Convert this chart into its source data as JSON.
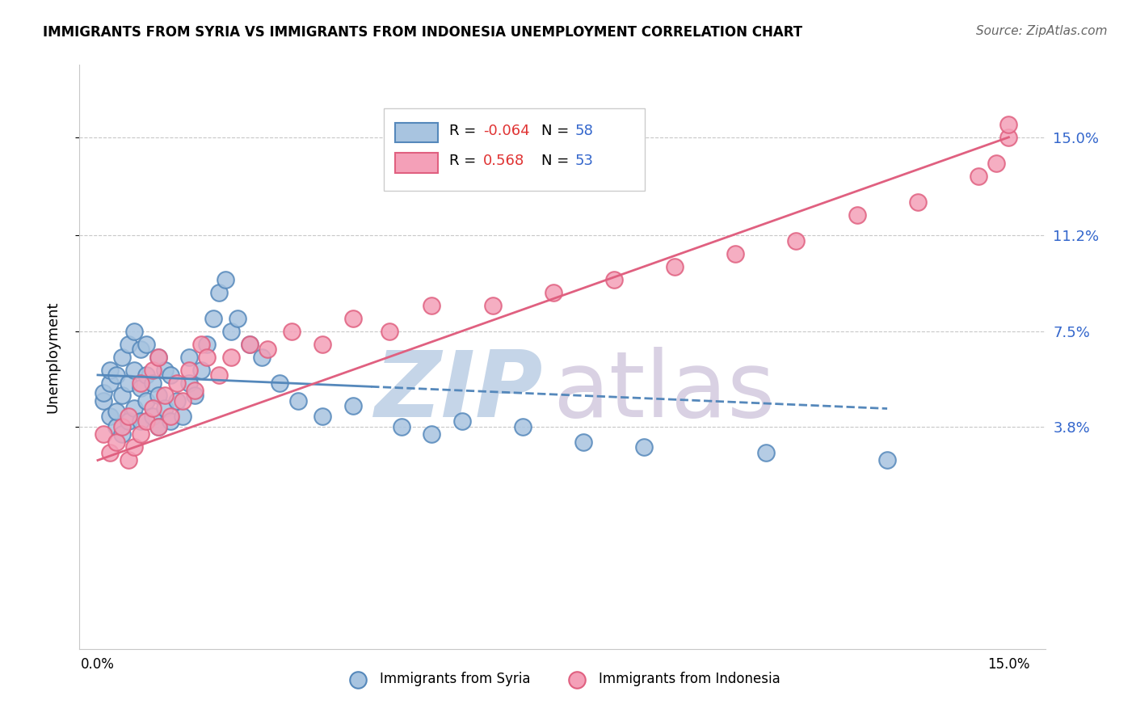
{
  "title": "IMMIGRANTS FROM SYRIA VS IMMIGRANTS FROM INDONESIA UNEMPLOYMENT CORRELATION CHART",
  "source": "Source: ZipAtlas.com",
  "ylabel": "Unemployment",
  "color_syria": "#a8c4e0",
  "color_indonesia": "#f4a0b8",
  "line_color_syria": "#5588bb",
  "line_color_indonesia": "#e06080",
  "ytick_values": [
    0.038,
    0.075,
    0.112,
    0.15
  ],
  "ytick_labels": [
    "3.8%",
    "7.5%",
    "11.2%",
    "15.0%"
  ],
  "xlim": [
    -0.003,
    0.156
  ],
  "ylim": [
    -0.048,
    0.178
  ],
  "grid_color": "#c8c8c8",
  "syria_x": [
    0.001,
    0.001,
    0.002,
    0.002,
    0.002,
    0.003,
    0.003,
    0.003,
    0.004,
    0.004,
    0.004,
    0.005,
    0.005,
    0.005,
    0.006,
    0.006,
    0.006,
    0.007,
    0.007,
    0.007,
    0.008,
    0.008,
    0.008,
    0.009,
    0.009,
    0.01,
    0.01,
    0.01,
    0.011,
    0.011,
    0.012,
    0.012,
    0.013,
    0.014,
    0.015,
    0.015,
    0.016,
    0.017,
    0.018,
    0.019,
    0.02,
    0.021,
    0.022,
    0.023,
    0.025,
    0.027,
    0.03,
    0.033,
    0.037,
    0.042,
    0.05,
    0.055,
    0.06,
    0.07,
    0.08,
    0.09,
    0.11,
    0.13
  ],
  "syria_y": [
    0.048,
    0.051,
    0.042,
    0.055,
    0.06,
    0.038,
    0.044,
    0.058,
    0.035,
    0.05,
    0.065,
    0.04,
    0.055,
    0.07,
    0.045,
    0.06,
    0.075,
    0.04,
    0.053,
    0.068,
    0.048,
    0.058,
    0.07,
    0.042,
    0.055,
    0.038,
    0.05,
    0.065,
    0.045,
    0.06,
    0.04,
    0.058,
    0.048,
    0.042,
    0.055,
    0.065,
    0.05,
    0.06,
    0.07,
    0.08,
    0.09,
    0.095,
    0.075,
    0.08,
    0.07,
    0.065,
    0.055,
    0.048,
    0.042,
    0.046,
    0.038,
    0.035,
    0.04,
    0.038,
    0.032,
    0.03,
    0.028,
    0.025
  ],
  "indonesia_x": [
    0.001,
    0.002,
    0.003,
    0.004,
    0.005,
    0.005,
    0.006,
    0.007,
    0.007,
    0.008,
    0.009,
    0.009,
    0.01,
    0.01,
    0.011,
    0.012,
    0.013,
    0.014,
    0.015,
    0.016,
    0.017,
    0.018,
    0.02,
    0.022,
    0.025,
    0.028,
    0.032,
    0.037,
    0.042,
    0.048,
    0.055,
    0.065,
    0.075,
    0.085,
    0.095,
    0.105,
    0.115,
    0.125,
    0.135,
    0.145,
    0.148,
    0.15,
    0.15
  ],
  "indonesia_y": [
    0.035,
    0.028,
    0.032,
    0.038,
    0.025,
    0.042,
    0.03,
    0.035,
    0.055,
    0.04,
    0.045,
    0.06,
    0.038,
    0.065,
    0.05,
    0.042,
    0.055,
    0.048,
    0.06,
    0.052,
    0.07,
    0.065,
    0.058,
    0.065,
    0.07,
    0.068,
    0.075,
    0.07,
    0.08,
    0.075,
    0.085,
    0.085,
    0.09,
    0.095,
    0.1,
    0.105,
    0.11,
    0.12,
    0.125,
    0.135,
    0.14,
    0.15,
    0.155
  ],
  "syria_line_x": [
    0.0,
    0.13
  ],
  "syria_line_y": [
    0.058,
    0.045
  ],
  "indonesia_line_x": [
    0.0,
    0.15
  ],
  "indonesia_line_y": [
    0.025,
    0.15
  ]
}
